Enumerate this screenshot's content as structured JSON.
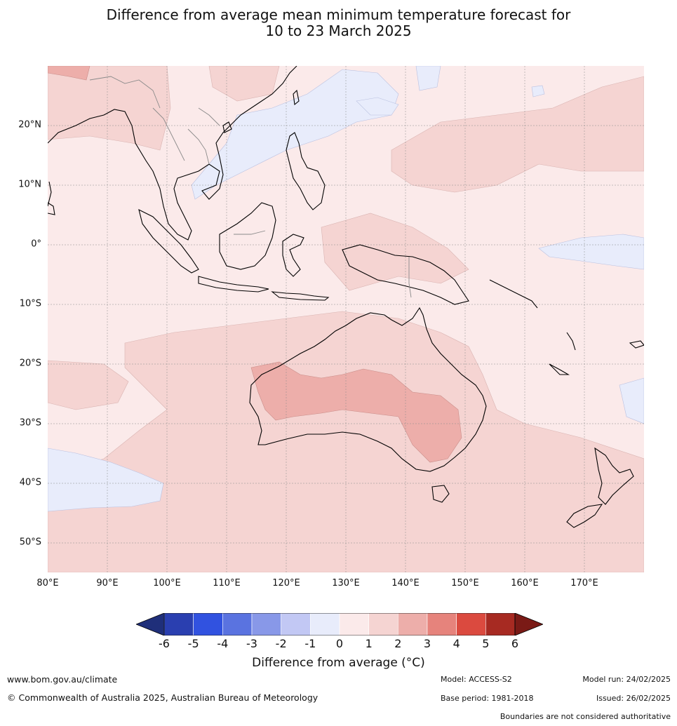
{
  "title_line1": "Difference from average mean minimum temperature forecast for",
  "title_line2": "10 to 23 March 2025",
  "lat_labels": [
    "20°N",
    "10°N",
    "0°",
    "10°S",
    "20°S",
    "30°S",
    "40°S",
    "50°S"
  ],
  "lon_labels": [
    "80°E",
    "90°E",
    "100°E",
    "110°E",
    "120°E",
    "130°E",
    "140°E",
    "150°E",
    "160°E",
    "170°E"
  ],
  "colorbar": {
    "ticks": [
      "-6",
      "-5",
      "-4",
      "-3",
      "-2",
      "-1",
      "0",
      "1",
      "2",
      "3",
      "4",
      "5",
      "6"
    ],
    "colors": [
      "#1f2f7a",
      "#2a3fb0",
      "#3152e0",
      "#5a73e0",
      "#8898e8",
      "#c2c8f4",
      "#e8ecfb",
      "#fbeaea",
      "#f5d4d2",
      "#edaeaa",
      "#e6837c",
      "#db4a3f",
      "#a72a22",
      "#7a1a16"
    ],
    "label": "Difference from average (°C)"
  },
  "colors": {
    "ocean_base": "#fbeaea",
    "warm_1_2": "#f5d4d2",
    "warm_2_3": "#edaeaa",
    "cool_0_1": "#e8ecfb"
  },
  "footer": {
    "website": "www.bom.gov.au/climate",
    "copyright": "© Commonwealth of Australia 2025, Australian Bureau of Meteorology",
    "model": "Model: ACCESS-S2",
    "base_period": "Base period: 1981-2018",
    "model_run": "Model run: 24/02/2025",
    "issued": "Issued: 26/02/2025",
    "disclaimer": "Boundaries are not considered authoritative"
  }
}
